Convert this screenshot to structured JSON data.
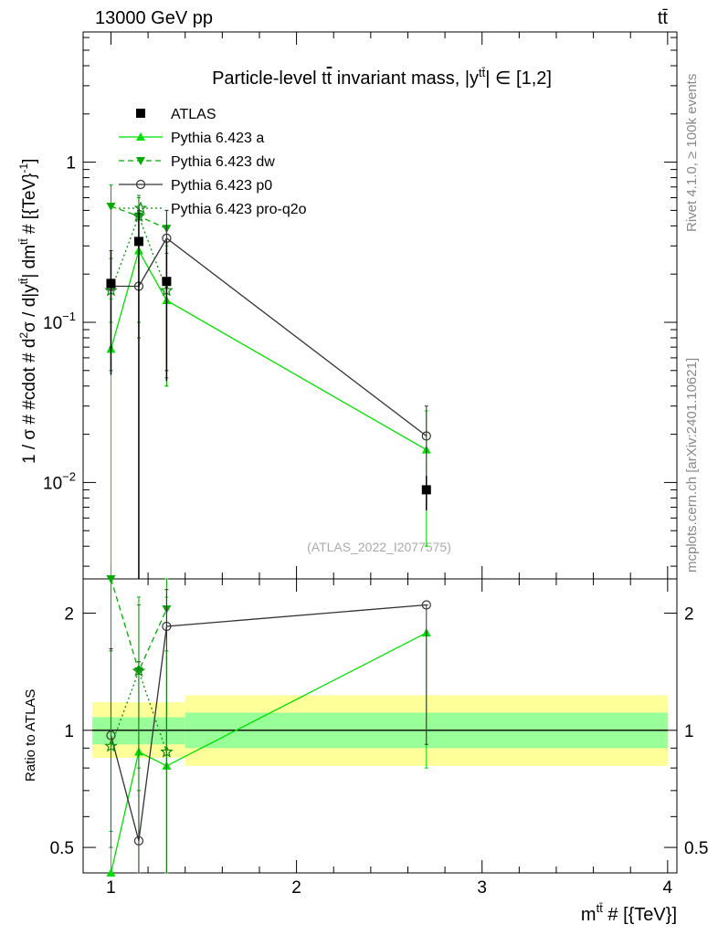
{
  "header": {
    "energy_label": "13000 GeV pp",
    "process_label": "tt̄",
    "side_label": "Rivet 4.1.0, ≥ 100k events",
    "side_label2": "mcplots.cern.ch [arXiv:2401.10621]",
    "analysis_id": "(ATLAS_2022_I2077575)"
  },
  "colors": {
    "data": "#000000",
    "pythia_a": "#00dd00",
    "pythia_dw": "#00aa00",
    "pythia_p0": "#333333",
    "pythia_pro_q2o": "#118811",
    "band_inner": "#99ff99",
    "band_outer": "#ffff99"
  },
  "chart_data": [
    {
      "type": "scatter",
      "panel": "main",
      "title": "Particle-level tt̄ invariant mass, |y^{tt̄}| ∈ [1,2]",
      "title_prefix": "Particle-level t",
      "title_tbar": "t",
      "title_mid": " invariant mass, |y",
      "title_sup": "tt̄",
      "title_suffix": "| ∈ [1,2]",
      "ylabel": "1 / σ # #cdot # d²σ / d|y^{tt̄}| dm^{tt̄} # [{TeV}⁻¹]",
      "ylabel_parts": [
        "1 / σ # #cdot # d",
        "2",
        "σ / d|y",
        "tt̄",
        "| dm",
        "tt̄",
        " # [{TeV}",
        "-1",
        "]"
      ],
      "yscale": "log",
      "ylim": [
        0.0025,
        6.5
      ],
      "xlim": [
        0.85,
        4.05
      ],
      "y_ticks": [
        {
          "value": 1,
          "base": "1",
          "exp": ""
        },
        {
          "value": 0.1,
          "base": "10",
          "exp": "−1"
        },
        {
          "value": 0.01,
          "base": "10",
          "exp": "−2"
        }
      ],
      "legend": [
        {
          "key": "atlas",
          "label": "ATLAS"
        },
        {
          "key": "a",
          "label": "Pythia 6.423 a"
        },
        {
          "key": "dw",
          "label": "Pythia 6.423 dw"
        },
        {
          "key": "p0",
          "label": "Pythia 6.423 p0"
        },
        {
          "key": "pq2o",
          "label": "Pythia 6.423 pro-q2o"
        }
      ],
      "series": [
        {
          "key": "atlas",
          "name": "ATLAS",
          "marker": "square",
          "x": [
            1.0,
            1.15,
            1.3,
            2.7
          ],
          "y": [
            0.175,
            0.32,
            0.18,
            0.009
          ],
          "ylo": [
            0.047,
            0.0025,
            0.043,
            0.0067
          ],
          "yhi": [
            0.28,
            0.52,
            0.32,
            0.011
          ],
          "xlo": [
            0.98,
            1.13,
            1.28,
            2.68
          ],
          "xhi": [
            1.02,
            1.17,
            1.32,
            2.72
          ]
        },
        {
          "key": "a",
          "name": "Pythia 6.423 a",
          "marker": "triangle-up",
          "dash": "",
          "x": [
            1.0,
            1.15,
            1.3,
            2.7
          ],
          "y": [
            0.068,
            0.28,
            0.137,
            0.016
          ],
          "ylo": [
            0.0025,
            0.08,
            0.04,
            0.004
          ],
          "yhi": [
            0.14,
            0.46,
            0.3,
            0.028
          ]
        },
        {
          "key": "dw",
          "name": "Pythia 6.423 dw",
          "marker": "triangle-down",
          "dash": "6,4",
          "x": [
            1.0,
            1.15,
            1.3
          ],
          "y": [
            0.53,
            0.46,
            0.385
          ],
          "ylo": [
            0.1,
            0.1,
            0.04
          ],
          "yhi": [
            0.72,
            0.6,
            0.5
          ]
        },
        {
          "key": "p0",
          "name": "Pythia 6.423 p0",
          "marker": "circle-open",
          "dash": "",
          "x": [
            1.0,
            1.15,
            1.3,
            2.7
          ],
          "y": [
            0.168,
            0.168,
            0.335,
            0.0195
          ],
          "ylo": [
            0.07,
            0.0025,
            0.05,
            0.009
          ],
          "yhi": [
            0.28,
            0.5,
            0.5,
            0.03
          ]
        },
        {
          "key": "pq2o",
          "name": "Pythia 6.423 pro-q2o",
          "marker": "star",
          "dash": "2,3",
          "x": [
            1.0,
            1.15,
            1.3
          ],
          "y": [
            0.158,
            0.46,
            0.158
          ],
          "ylo": [
            0.05,
            0.08,
            0.045
          ],
          "yhi": [
            0.25,
            0.62,
            0.27
          ]
        }
      ]
    },
    {
      "type": "scatter",
      "panel": "ratio",
      "ylabel": "Ratio to ATLAS",
      "xlabel": "m^{tt̄} # [{TeV}]",
      "xlabel_parts": [
        "m",
        "tt̄",
        " # [{TeV}]"
      ],
      "yscale": "log",
      "ylim": [
        0.43,
        2.45
      ],
      "xlim": [
        0.85,
        4.05
      ],
      "x_ticks": [
        1,
        2,
        3,
        4
      ],
      "y_ticks": [
        0.5,
        1,
        2
      ],
      "bands": [
        {
          "xmin": 0.9,
          "xmax": 1.4,
          "inner": [
            0.92,
            1.08
          ],
          "outer": [
            0.85,
            1.18
          ]
        },
        {
          "xmin": 1.4,
          "xmax": 4.0,
          "inner": [
            0.9,
            1.11
          ],
          "outer": [
            0.81,
            1.23
          ]
        }
      ],
      "series": [
        {
          "key": "a",
          "name": "Pythia 6.423 a",
          "marker": "triangle-up",
          "dash": "",
          "x": [
            1.0,
            1.15,
            1.3,
            2.7
          ],
          "y": [
            0.42,
            0.88,
            0.81,
            1.78
          ],
          "ylo": [
            0.42,
            0.42,
            0.42,
            0.8
          ],
          "yhi": [
            1.6,
            1.5,
            2.2,
            1.8
          ]
        },
        {
          "key": "dw",
          "name": "Pythia 6.423 dw",
          "marker": "triangle-down",
          "dash": "6,4",
          "x": [
            1.0,
            1.15,
            1.3
          ],
          "y": [
            2.45,
            1.42,
            2.05
          ],
          "ylo": [
            0.55,
            0.8,
            0.42
          ],
          "yhi": [
            2.45,
            2.2,
            2.45
          ]
        },
        {
          "key": "p0",
          "name": "Pythia 6.423 p0",
          "marker": "circle-open",
          "dash": "",
          "x": [
            1.0,
            1.15,
            1.3,
            2.7
          ],
          "y": [
            0.97,
            0.52,
            1.85,
            2.1
          ],
          "ylo": [
            0.5,
            0.42,
            0.42,
            0.92
          ],
          "yhi": [
            1.62,
            1.5,
            2.3,
            2.1
          ]
        },
        {
          "key": "pq2o",
          "name": "Pythia 6.423 pro-q2o",
          "marker": "star",
          "dash": "2,3",
          "x": [
            1.0,
            1.15,
            1.3
          ],
          "y": [
            0.91,
            1.42,
            0.88
          ],
          "ylo": [
            0.5,
            0.7,
            0.42
          ],
          "yhi": [
            1.6,
            2.1,
            1.6
          ]
        }
      ]
    }
  ]
}
